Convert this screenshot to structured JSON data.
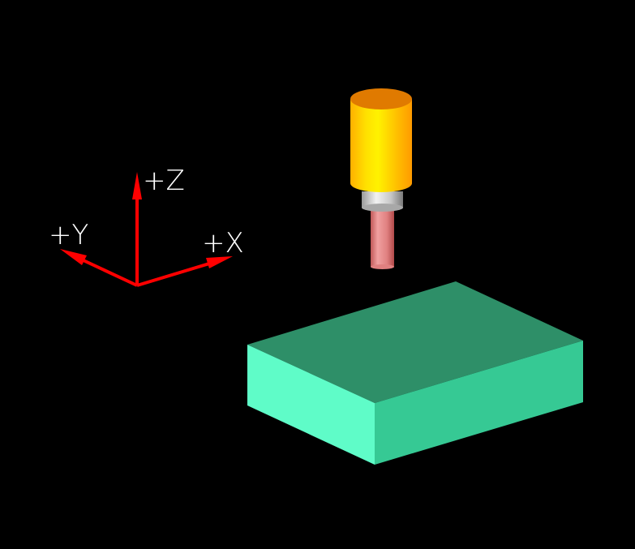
{
  "viewport": {
    "background": "#000000"
  },
  "axes": {
    "color": "#ff0000",
    "label_color": "#ffffff",
    "z_label": "+Z",
    "y_label": "+Y",
    "x_label": "+X"
  },
  "tool": {
    "holder_color": "#ffb000",
    "holder_top_color": "#e07a00",
    "collet_color": "#c0c0c0",
    "cutter_color": "#e07878"
  },
  "workpiece": {
    "top_color": "#2e8f68",
    "front_color": "#5ffcc8",
    "side_color": "#36c994"
  }
}
